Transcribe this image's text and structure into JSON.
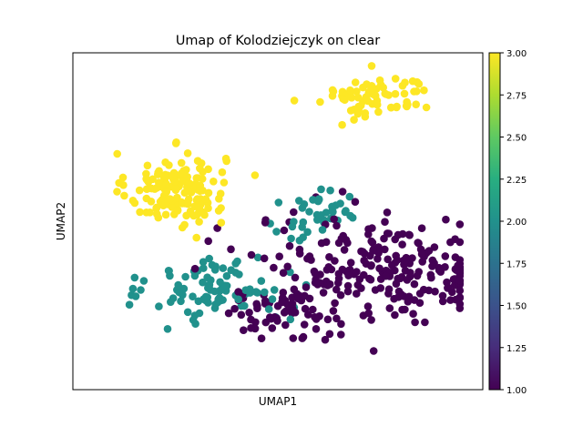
{
  "chart_data": {
    "type": "scatter",
    "title": "Umap of Kolodziejczyk on clear",
    "xlabel": "UMAP1",
    "ylabel": "UMAP2",
    "x_ticks_shown": false,
    "y_ticks_shown": false,
    "grid": false,
    "colorbar": {
      "colormap": "viridis",
      "range": [
        1.0,
        3.0
      ],
      "tick_values": [
        1.0,
        1.25,
        1.5,
        1.75,
        2.0,
        2.25,
        2.5,
        2.75,
        3.0
      ],
      "tick_labels": [
        "1.00",
        "1.25",
        "1.50",
        "1.75",
        "2.00",
        "2.25",
        "2.50",
        "2.75",
        "3.00"
      ]
    },
    "colors": {
      "level_1": "#440154",
      "level_2": "#21918c",
      "level_3": "#fde725"
    },
    "value_levels": [
      1,
      2,
      3
    ],
    "clusters": [
      {
        "value": 3,
        "x_center": 0.25,
        "y_center": 0.32,
        "x_spread": 0.085,
        "y_spread": 0.13,
        "count": 150
      },
      {
        "value": 3,
        "x_center": 0.77,
        "y_center": 0.82,
        "x_spread": 0.1,
        "y_spread": 0.08,
        "count": 75
      },
      {
        "value": 2,
        "x_center": 0.36,
        "y_center": -0.22,
        "x_spread": 0.12,
        "y_spread": 0.12,
        "count": 95
      },
      {
        "value": 2,
        "x_center": 0.62,
        "y_center": 0.18,
        "x_spread": 0.09,
        "y_spread": 0.1,
        "count": 40
      },
      {
        "value": 1,
        "x_center": 0.8,
        "y_center": -0.1,
        "x_spread": 0.23,
        "y_spread": 0.18,
        "count": 240
      },
      {
        "value": 1,
        "x_center": 0.52,
        "y_center": -0.35,
        "x_spread": 0.1,
        "y_spread": 0.09,
        "count": 60
      }
    ]
  }
}
